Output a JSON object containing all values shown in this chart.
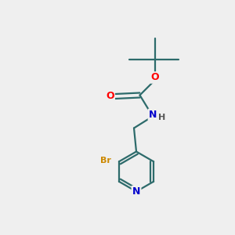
{
  "background_color": "#efefef",
  "bond_color": "#2d6b6b",
  "atom_colors": {
    "O": "#ff0000",
    "N": "#0000cc",
    "Br": "#cc8800",
    "C": "#2d6b6b",
    "H": "#555555"
  },
  "figsize": [
    3.0,
    3.0
  ],
  "dpi": 100
}
